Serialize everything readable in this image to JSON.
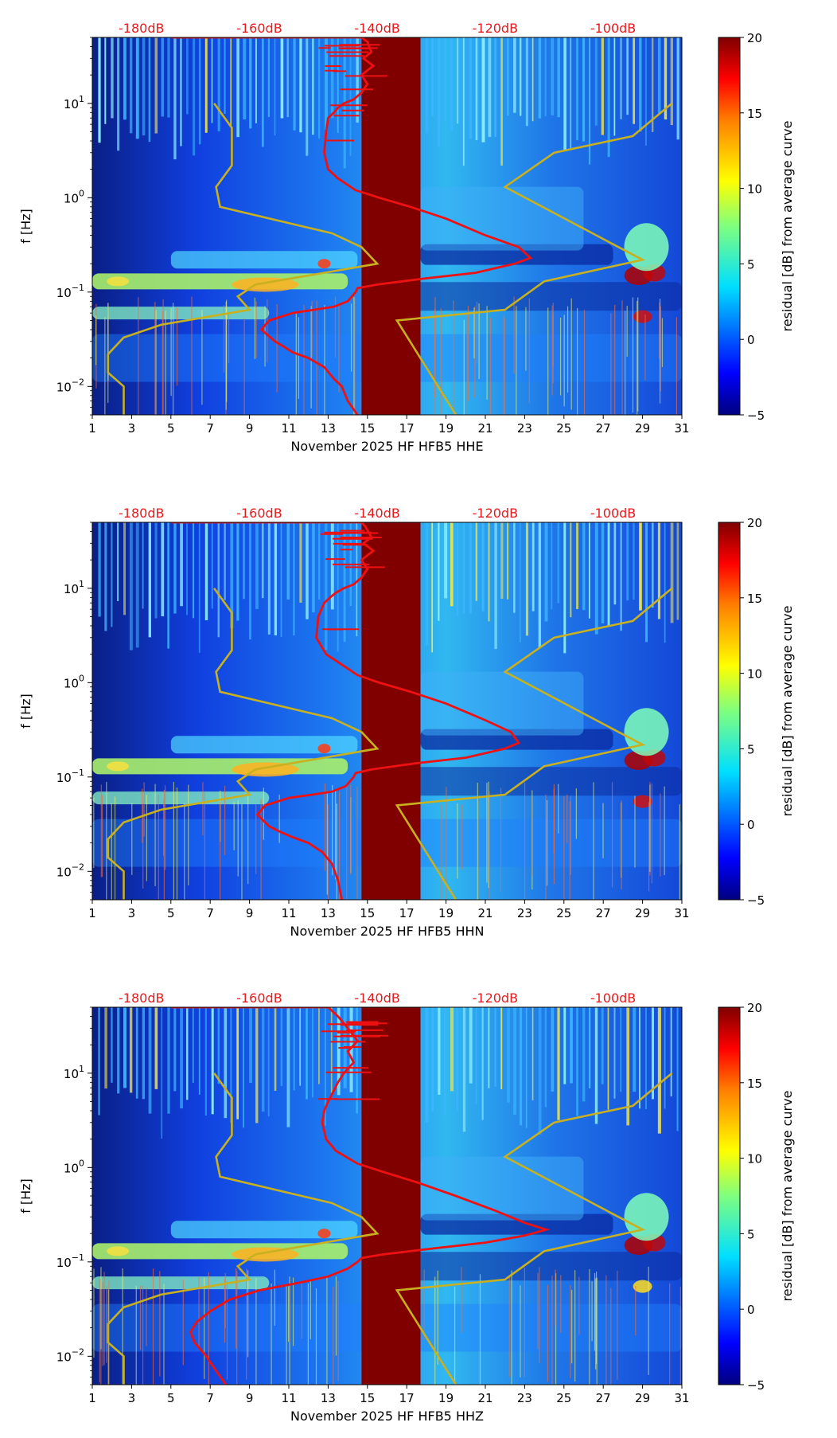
{
  "colors": {
    "accent_red": "#e8191c",
    "curve_red": "#ee1111",
    "curve_yellow": "#c8b020",
    "gap_fill": "#800000"
  },
  "chart_data": [
    {
      "type": "heatmap",
      "title": "",
      "xlabel": "November 2025 HF HFB5  HHE",
      "ylabel": "f [Hz]",
      "colorbar_label": "residual [dB] from average curve",
      "colorbar_ticks": [
        "20",
        "15",
        "10",
        "5",
        "0",
        "−5"
      ],
      "clim": [
        -5,
        20
      ],
      "xlim": [
        1,
        31
      ],
      "x_ticks": [
        "1",
        "3",
        "5",
        "7",
        "9",
        "11",
        "13",
        "15",
        "17",
        "19",
        "21",
        "23",
        "25",
        "27",
        "29",
        "31"
      ],
      "ylim": [
        0.005,
        50
      ],
      "y_ticks": [
        {
          "label": "10",
          "exp": "1",
          "value": 10
        },
        {
          "label": "10",
          "exp": "0",
          "value": 1
        },
        {
          "label": "10",
          "exp": "−1",
          "value": 0.1
        },
        {
          "label": "10",
          "exp": "−2",
          "value": 0.01
        }
      ],
      "top_db_ticks": [
        "-180dB",
        "-160dB",
        "-140dB",
        "-120dB",
        "-100dB"
      ],
      "gap_days": [
        14.7,
        17.7
      ],
      "red_curve": {
        "x": [
          5.0,
          14.7,
          15.0,
          15.2,
          14.8,
          15.3,
          14.7,
          15.0,
          14.7,
          14.3,
          13.8,
          13.5,
          13.3,
          13.0,
          12.9,
          12.8,
          13.0,
          13.5,
          14.4,
          15.6,
          17.2,
          19.0,
          21.0,
          22.7,
          23.3,
          22.5,
          20.5,
          18.0,
          15.5,
          14.5,
          14.4,
          14.0,
          13.3,
          12.3,
          11.2,
          10.0,
          9.6,
          10.3,
          10.8,
          11.2,
          12.0,
          12.8,
          13.3,
          13.7,
          14.0,
          14.5
        ],
        "y": [
          50,
          50,
          45,
          35,
          30,
          25,
          20,
          16,
          13,
          11,
          10,
          9,
          8,
          7,
          5,
          3,
          2,
          1.6,
          1.2,
          1.0,
          0.8,
          0.6,
          0.4,
          0.3,
          0.23,
          0.2,
          0.16,
          0.14,
          0.12,
          0.11,
          0.1,
          0.08,
          0.07,
          0.065,
          0.06,
          0.05,
          0.04,
          0.03,
          0.026,
          0.023,
          0.02,
          0.016,
          0.012,
          0.01,
          0.007,
          0.005
        ]
      },
      "yellow_curve": {
        "x": [
          2.6,
          2.6,
          1.8,
          1.8,
          2.6,
          4.5,
          9.0,
          8.4,
          9.3,
          12.8,
          15.5,
          14.7,
          13.2,
          7.5,
          7.3,
          8.1,
          8.1,
          7.2,
          16.5,
          22.0,
          24.0,
          29.0,
          22.0,
          24.5,
          28.5,
          30.5,
          19.5
        ],
        "y": [
          0.005,
          0.01,
          0.014,
          0.022,
          0.033,
          0.045,
          0.065,
          0.09,
          0.12,
          0.16,
          0.2,
          0.3,
          0.42,
          0.8,
          1.3,
          2.2,
          5.5,
          10,
          0.05,
          0.065,
          0.13,
          0.22,
          1.3,
          3.0,
          4.5,
          10,
          0.005
        ]
      }
    },
    {
      "type": "heatmap",
      "title": "",
      "xlabel": "November 2025 HF HFB5  HHN",
      "ylabel": "f [Hz]",
      "colorbar_label": "residual [dB] from average curve",
      "colorbar_ticks": [
        "20",
        "15",
        "10",
        "5",
        "0",
        "−5"
      ],
      "clim": [
        -5,
        20
      ],
      "xlim": [
        1,
        31
      ],
      "x_ticks": [
        "1",
        "3",
        "5",
        "7",
        "9",
        "11",
        "13",
        "15",
        "17",
        "19",
        "21",
        "23",
        "25",
        "27",
        "29",
        "31"
      ],
      "ylim": [
        0.005,
        50
      ],
      "y_ticks": [
        {
          "label": "10",
          "exp": "1",
          "value": 10
        },
        {
          "label": "10",
          "exp": "0",
          "value": 1
        },
        {
          "label": "10",
          "exp": "−1",
          "value": 0.1
        },
        {
          "label": "10",
          "exp": "−2",
          "value": 0.01
        }
      ],
      "top_db_ticks": [
        "-180dB",
        "-160dB",
        "-140dB",
        "-120dB",
        "-100dB"
      ],
      "gap_days": [
        14.7,
        17.7
      ],
      "red_curve": {
        "x": [
          5.0,
          14.7,
          14.9,
          15.2,
          14.8,
          15.3,
          14.7,
          15.0,
          14.7,
          14.3,
          13.8,
          13.4,
          13.1,
          12.8,
          12.5,
          12.4,
          12.9,
          13.6,
          14.5,
          15.6,
          17.2,
          19.0,
          21.0,
          22.3,
          22.7,
          22.0,
          20.0,
          17.5,
          15.2,
          14.4,
          14.3,
          13.9,
          13.2,
          12.2,
          11.0,
          9.8,
          9.4,
          10.0,
          10.6,
          11.2,
          12.0,
          12.7,
          13.2,
          13.5,
          13.7
        ],
        "y": [
          50,
          50,
          45,
          35,
          30,
          25,
          20,
          16,
          13,
          11,
          10,
          9,
          8,
          7,
          5,
          3,
          2,
          1.6,
          1.2,
          1.0,
          0.8,
          0.6,
          0.4,
          0.3,
          0.23,
          0.2,
          0.16,
          0.14,
          0.12,
          0.11,
          0.1,
          0.08,
          0.07,
          0.065,
          0.06,
          0.05,
          0.04,
          0.03,
          0.026,
          0.023,
          0.02,
          0.016,
          0.012,
          0.008,
          0.005
        ]
      },
      "yellow_curve": {
        "x": [
          2.6,
          2.6,
          1.8,
          1.8,
          2.6,
          4.5,
          9.0,
          8.4,
          9.3,
          12.8,
          15.5,
          14.7,
          13.2,
          7.5,
          7.3,
          8.1,
          8.1,
          7.2,
          16.5,
          22.0,
          24.0,
          29.0,
          22.0,
          24.5,
          28.5,
          30.5,
          19.5
        ],
        "y": [
          0.005,
          0.01,
          0.014,
          0.022,
          0.033,
          0.045,
          0.065,
          0.09,
          0.12,
          0.16,
          0.2,
          0.3,
          0.42,
          0.8,
          1.3,
          2.2,
          5.5,
          10,
          0.05,
          0.065,
          0.13,
          0.22,
          1.3,
          3.0,
          4.5,
          10,
          0.005
        ]
      }
    },
    {
      "type": "heatmap",
      "title": "",
      "xlabel": "November 2025 HF HFB5  HHZ",
      "ylabel": "f [Hz]",
      "colorbar_label": "residual [dB] from average curve",
      "colorbar_ticks": [
        "20",
        "15",
        "10",
        "5",
        "0",
        "−5"
      ],
      "clim": [
        -5,
        20
      ],
      "xlim": [
        1,
        31
      ],
      "x_ticks": [
        "1",
        "3",
        "5",
        "7",
        "9",
        "11",
        "13",
        "15",
        "17",
        "19",
        "21",
        "23",
        "25",
        "27",
        "29",
        "31"
      ],
      "ylim": [
        0.005,
        50
      ],
      "y_ticks": [
        {
          "label": "10",
          "exp": "1",
          "value": 10
        },
        {
          "label": "10",
          "exp": "0",
          "value": 1
        },
        {
          "label": "10",
          "exp": "−1",
          "value": 0.1
        },
        {
          "label": "10",
          "exp": "−2",
          "value": 0.01
        }
      ],
      "top_db_ticks": [
        "-180dB",
        "-160dB",
        "-140dB",
        "-120dB",
        "-100dB"
      ],
      "gap_days": [
        14.7,
        17.7
      ],
      "red_curve": {
        "x": [
          5.0,
          13.0,
          13.5,
          14.0,
          14.5,
          14.0,
          14.3,
          13.8,
          13.5,
          13.2,
          13.0,
          12.8,
          12.7,
          12.9,
          13.4,
          14.5,
          15.8,
          17.5,
          19.5,
          21.5,
          23.0,
          24.1,
          23.0,
          21.0,
          18.5,
          15.8,
          14.7,
          14.5,
          14.0,
          13.0,
          11.5,
          9.5,
          8.0,
          7.0,
          6.3,
          6.0,
          6.2,
          6.8,
          7.3,
          7.8
        ],
        "y": [
          50,
          50,
          40,
          30,
          22,
          17,
          13,
          10,
          8,
          6,
          5,
          4,
          3,
          2,
          1.5,
          1.1,
          0.9,
          0.7,
          0.5,
          0.35,
          0.26,
          0.22,
          0.19,
          0.16,
          0.14,
          0.12,
          0.11,
          0.1,
          0.085,
          0.07,
          0.06,
          0.05,
          0.04,
          0.03,
          0.023,
          0.018,
          0.014,
          0.01,
          0.007,
          0.005
        ]
      },
      "yellow_curve": {
        "x": [
          2.6,
          2.6,
          1.8,
          1.8,
          2.6,
          4.5,
          9.0,
          8.4,
          9.3,
          12.8,
          15.5,
          14.7,
          13.2,
          7.5,
          7.3,
          8.1,
          8.1,
          7.2,
          16.5,
          22.0,
          24.0,
          29.0,
          22.0,
          24.5,
          28.5,
          30.5,
          19.5
        ],
        "y": [
          0.005,
          0.01,
          0.014,
          0.022,
          0.033,
          0.045,
          0.065,
          0.09,
          0.12,
          0.16,
          0.2,
          0.3,
          0.42,
          0.8,
          1.3,
          2.2,
          5.5,
          10,
          0.05,
          0.065,
          0.13,
          0.22,
          1.3,
          3.0,
          4.5,
          10,
          0.005
        ]
      }
    }
  ]
}
